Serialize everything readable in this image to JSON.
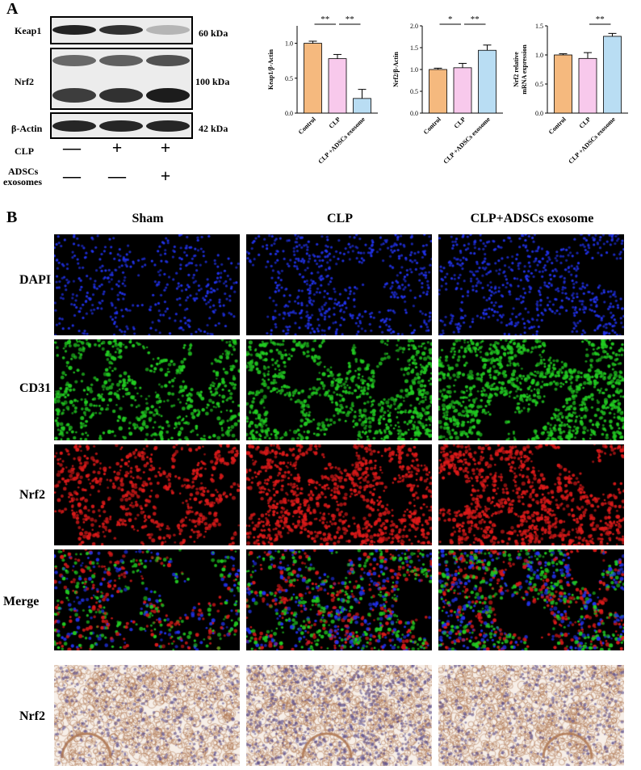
{
  "panelA": {
    "letter": "A",
    "blot": {
      "rows": [
        {
          "label": "Keap1",
          "kda": "60 kDa",
          "intensities": [
            0.92,
            0.85,
            0.25
          ]
        },
        {
          "label": "Nrf2",
          "kda": "100 kDa",
          "intensities": [
            0.8,
            0.85,
            0.95
          ]
        },
        {
          "label": "β-Actin",
          "kda": "42 kDa",
          "intensities": [
            0.9,
            0.9,
            0.9
          ]
        }
      ],
      "clp_label": "CLP",
      "clp_signs": [
        "—",
        "+",
        "+"
      ],
      "exo_label_1": "ADSCs",
      "exo_label_2": "exosomes",
      "exo_signs": [
        "—",
        "—",
        "+"
      ]
    }
  },
  "chart_data": [
    {
      "type": "bar",
      "ylabel": "Keap1/β-Actin",
      "categories": [
        "Control",
        "CLP",
        "CLP +ADSCs exosome"
      ],
      "values": [
        1.0,
        0.78,
        0.21
      ],
      "errors": [
        0.03,
        0.06,
        0.13
      ],
      "ylim": [
        0,
        1.25
      ],
      "yticks": [
        "0.0",
        "0.5",
        "1.0"
      ],
      "ytick_values": [
        0,
        0.5,
        1.0
      ],
      "significance": [
        {
          "from": 0,
          "to": 1,
          "label": "**"
        },
        {
          "from": 1,
          "to": 2,
          "label": "**"
        }
      ],
      "colors": [
        "#F5B97E",
        "#F8C9EC",
        "#B9DDF3"
      ]
    },
    {
      "type": "bar",
      "ylabel": "Nrf2/β-Actin",
      "categories": [
        "Control",
        "CLP",
        "CLP +ADSCs exosome"
      ],
      "values": [
        1.0,
        1.04,
        1.44
      ],
      "errors": [
        0.03,
        0.1,
        0.12
      ],
      "ylim": [
        0,
        2.0
      ],
      "yticks": [
        "0.0",
        "0.5",
        "1.0",
        "1.5",
        "2.0"
      ],
      "ytick_values": [
        0,
        0.5,
        1.0,
        1.5,
        2.0
      ],
      "significance": [
        {
          "from": 0,
          "to": 1,
          "label": "*"
        },
        {
          "from": 1,
          "to": 2,
          "label": "**"
        }
      ],
      "colors": [
        "#F5B97E",
        "#F8C9EC",
        "#B9DDF3"
      ]
    },
    {
      "type": "bar",
      "ylabel": "Nrf2 relative",
      "ylabel2": "mRNA expression",
      "categories": [
        "Control",
        "CLP",
        "CLP +ADSCs exosome"
      ],
      "values": [
        1.0,
        0.94,
        1.32
      ],
      "errors": [
        0.02,
        0.1,
        0.05
      ],
      "ylim": [
        0,
        1.5
      ],
      "yticks": [
        "0.0",
        "0.5",
        "1.0",
        "1.5"
      ],
      "ytick_values": [
        0,
        0.5,
        1.0,
        1.5
      ],
      "significance": [
        {
          "from": 1,
          "to": 2,
          "label": "**"
        }
      ],
      "colors": [
        "#F5B97E",
        "#F8C9EC",
        "#B9DDF3"
      ]
    }
  ],
  "panelB": {
    "letter": "B",
    "columns": [
      "Sham",
      "CLP",
      "CLP+ADSCs exosome"
    ],
    "rows": [
      {
        "label": "DAPI",
        "kind": "dapi"
      },
      {
        "label": "CD31",
        "kind": "cd31"
      },
      {
        "label": "Nrf2",
        "kind": "nrf2"
      },
      {
        "label": "Merge",
        "kind": "merge"
      },
      {
        "label": "Nrf2",
        "kind": "ihc"
      }
    ],
    "colors": {
      "dapi": "#2233ee",
      "cd31": "#22cc22",
      "nrf2": "#dd1a1a",
      "ihc_bg": "#f7efe8",
      "ihc_tissue": "#b07a55",
      "ihc_nuclei": "#5a4c8c"
    }
  }
}
